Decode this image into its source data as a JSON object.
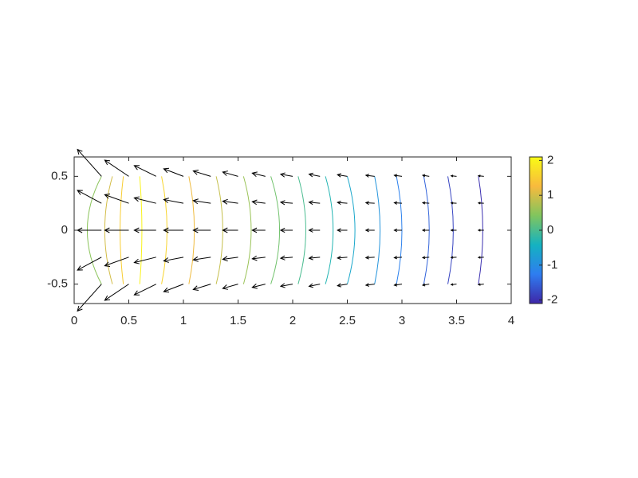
{
  "chart_data": {
    "type": "contour-quiver",
    "xlim": [
      0,
      4
    ],
    "ylim": [
      -0.68,
      0.68
    ],
    "xticks": [
      0,
      0.5,
      1,
      1.5,
      2,
      2.5,
      3,
      3.5,
      4
    ],
    "yticks": [
      -0.5,
      0,
      0.5
    ],
    "clim": [
      -2.1,
      2.1
    ],
    "cticks": [
      -2,
      -1,
      0,
      1,
      2
    ],
    "colormap": [
      "#3e26a8",
      "#2e7df0",
      "#14b2c1",
      "#80c55e",
      "#f8ba3d",
      "#f9fb15"
    ],
    "arrow_color": "#000000",
    "contour_y": [
      -0.5,
      0,
      0.5
    ],
    "contours": [
      {
        "level": 0.5,
        "x": [
          0.25,
          0.12,
          0.25
        ]
      },
      {
        "level": 1.0,
        "x": [
          0.35,
          0.28,
          0.35
        ]
      },
      {
        "level": 1.5,
        "x": [
          0.45,
          0.42,
          0.45
        ]
      },
      {
        "level": 2.0,
        "x": [
          0.6,
          0.62,
          0.6
        ]
      },
      {
        "level": 1.6,
        "x": [
          0.8,
          0.85,
          0.8
        ]
      },
      {
        "level": 1.2,
        "x": [
          1.05,
          1.1,
          1.05
        ]
      },
      {
        "level": 0.9,
        "x": [
          1.3,
          1.36,
          1.3
        ]
      },
      {
        "level": 0.6,
        "x": [
          1.55,
          1.62,
          1.55
        ]
      },
      {
        "level": 0.3,
        "x": [
          1.8,
          1.88,
          1.8
        ]
      },
      {
        "level": 0.0,
        "x": [
          2.05,
          2.12,
          2.05
        ]
      },
      {
        "level": -0.3,
        "x": [
          2.3,
          2.37,
          2.3
        ]
      },
      {
        "level": -0.6,
        "x": [
          2.5,
          2.57,
          2.5
        ]
      },
      {
        "level": -0.9,
        "x": [
          2.75,
          2.8,
          2.75
        ]
      },
      {
        "level": -1.2,
        "x": [
          2.95,
          3.0,
          2.95
        ]
      },
      {
        "level": -1.5,
        "x": [
          3.2,
          3.25,
          3.2
        ]
      },
      {
        "level": -1.8,
        "x": [
          3.42,
          3.47,
          3.42
        ]
      },
      {
        "level": -2.0,
        "x": [
          3.7,
          3.74,
          3.7
        ]
      }
    ],
    "quiver": {
      "x": [
        0.25,
        0.5,
        0.75,
        1,
        1.25,
        1.5,
        1.75,
        2,
        2.25,
        2.5,
        2.75,
        3,
        3.25,
        3.5,
        3.75
      ],
      "y": [
        -0.5,
        -0.25,
        0,
        0.25,
        0.5
      ],
      "u": [
        [
          -0.22,
          -0.22,
          -0.2,
          -0.18,
          -0.16,
          -0.14,
          -0.12,
          -0.11,
          -0.1,
          -0.09,
          -0.08,
          -0.07,
          -0.06,
          -0.05,
          -0.05
        ],
        [
          -0.22,
          -0.22,
          -0.2,
          -0.18,
          -0.16,
          -0.14,
          -0.12,
          -0.11,
          -0.1,
          -0.09,
          -0.08,
          -0.07,
          -0.06,
          -0.05,
          -0.05
        ],
        [
          -0.22,
          -0.22,
          -0.2,
          -0.18,
          -0.16,
          -0.14,
          -0.12,
          -0.11,
          -0.1,
          -0.09,
          -0.08,
          -0.07,
          -0.06,
          -0.05,
          -0.05
        ],
        [
          -0.22,
          -0.22,
          -0.2,
          -0.18,
          -0.16,
          -0.14,
          -0.12,
          -0.11,
          -0.1,
          -0.09,
          -0.08,
          -0.07,
          -0.06,
          -0.05,
          -0.05
        ],
        [
          -0.22,
          -0.22,
          -0.2,
          -0.18,
          -0.16,
          -0.14,
          -0.12,
          -0.11,
          -0.1,
          -0.09,
          -0.08,
          -0.07,
          -0.06,
          -0.05,
          -0.05
        ]
      ],
      "v": [
        [
          -0.25,
          -0.15,
          -0.1,
          -0.07,
          -0.05,
          -0.04,
          -0.03,
          -0.02,
          -0.02,
          -0.015,
          -0.01,
          -0.01,
          -0.01,
          -0.005,
          -0.005
        ],
        [
          -0.12,
          -0.08,
          -0.05,
          -0.035,
          -0.025,
          -0.02,
          -0.015,
          -0.01,
          -0.01,
          -0.008,
          -0.005,
          -0.005,
          -0.005,
          -0.003,
          -0.003
        ],
        [
          0,
          0,
          0,
          0,
          0,
          0,
          0,
          0,
          0,
          0,
          0,
          0,
          0,
          0,
          0
        ],
        [
          0.12,
          0.08,
          0.05,
          0.035,
          0.025,
          0.02,
          0.015,
          0.01,
          0.01,
          0.008,
          0.005,
          0.005,
          0.005,
          0.003,
          0.003
        ],
        [
          0.25,
          0.15,
          0.1,
          0.07,
          0.05,
          0.04,
          0.03,
          0.02,
          0.02,
          0.015,
          0.01,
          0.01,
          0.01,
          0.005,
          0.005
        ]
      ]
    }
  }
}
